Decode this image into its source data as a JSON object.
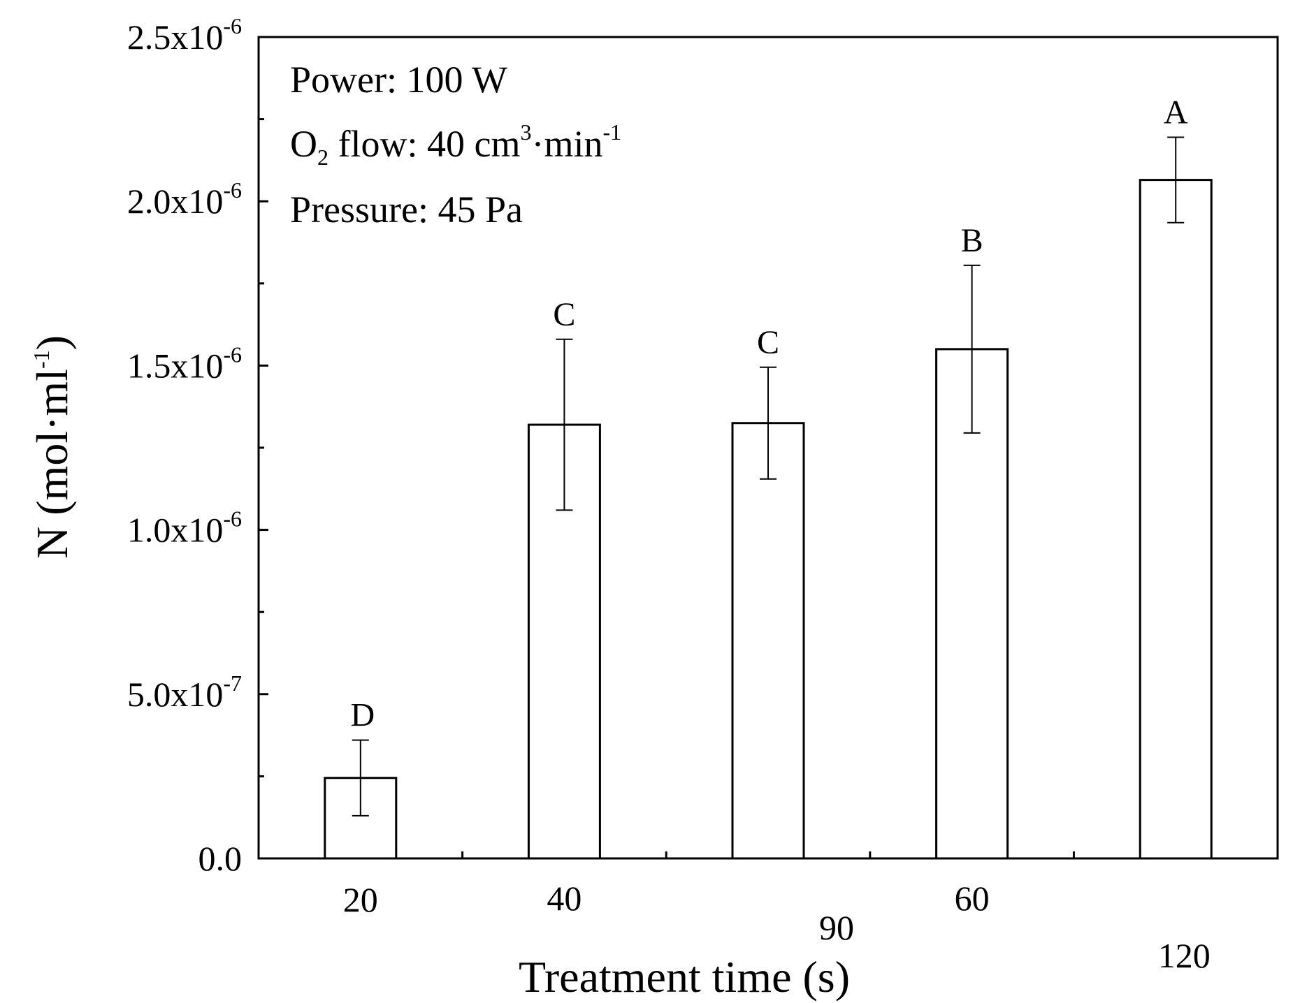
{
  "chart_data": {
    "type": "bar",
    "categories": [
      "20",
      "40",
      "90",
      "60",
      "120"
    ],
    "values": [
      2.45e-07,
      1.32e-06,
      1.325e-06,
      1.55e-06,
      2.065e-06
    ],
    "errors": [
      1.15e-07,
      2.6e-07,
      1.7e-07,
      2.55e-07,
      1.3e-07
    ],
    "significance_letters": [
      "D",
      "C",
      "C",
      "B",
      "A"
    ],
    "xlabel": "Treatment time (s)",
    "ylabel": {
      "base": "N (mol·ml",
      "sup": "-1",
      "close": ")"
    },
    "ylim": [
      0,
      2.5e-06
    ],
    "yticks": [
      {
        "value": 0,
        "mantissa": "0.0",
        "exponent": ""
      },
      {
        "value": 5e-07,
        "mantissa": "5.0x10",
        "exponent": "-7"
      },
      {
        "value": 1e-06,
        "mantissa": "1.0x10",
        "exponent": "-6"
      },
      {
        "value": 1.5e-06,
        "mantissa": "1.5x10",
        "exponent": "-6"
      },
      {
        "value": 2e-06,
        "mantissa": "2.0x10",
        "exponent": "-6"
      },
      {
        "value": 2.5e-06,
        "mantissa": "2.5x10",
        "exponent": "-6"
      }
    ],
    "bar_fill": "#ffffff",
    "bar_stroke": "#000000",
    "annotations": {
      "power": "Power: 100 W",
      "flow_prefix": "O",
      "flow_sub": "2",
      "flow_mid": " flow: 40 cm",
      "flow_sup1": "3",
      "flow_unit": "·min",
      "flow_sup2": "-1",
      "pressure": "Pressure: 45 Pa"
    }
  }
}
